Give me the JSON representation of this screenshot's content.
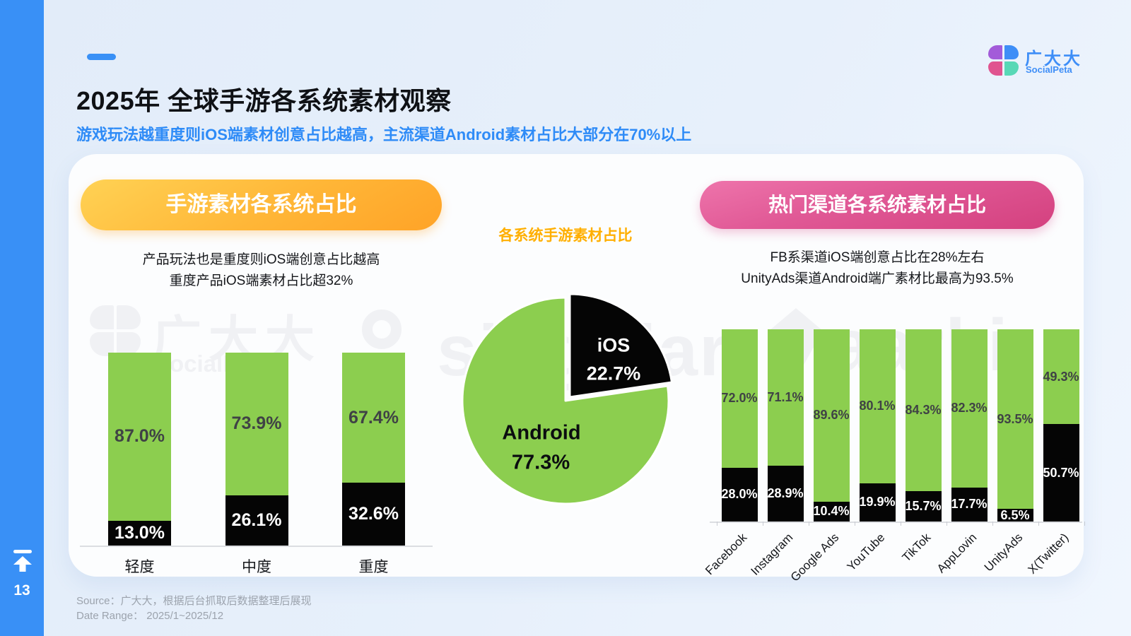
{
  "page": {
    "number": "13"
  },
  "header": {
    "title": "2025年 全球手游各系统素材观察",
    "subtitle": "游戏玩法越重度则iOS端素材创意占比越高，主流渠道Android素材占比大部分在70%以上"
  },
  "logo": {
    "name": "广大大",
    "sub": "SocialPeta"
  },
  "left_panel": {
    "pill": "手游素材各系统占比",
    "desc1": "产品玩法也是重度则iOS端创意占比越高",
    "desc2": "重度产品iOS端素材占比超32%"
  },
  "center_panel": {
    "title": "各系统手游素材占比"
  },
  "right_panel": {
    "pill": "热门渠道各系统素材占比",
    "desc1": "FB系渠道iOS端创意占比在28%左右",
    "desc2": "UnityAds渠道Android端广素材比最高为93.5%"
  },
  "watermarks": {
    "socialpeta_name": "广大大",
    "socialpeta_sub": "SocialPeta",
    "singular": "singular",
    "aarki": "aarki"
  },
  "footer": {
    "source": "Source：广大大，根据后台抓取后数据整理后展现",
    "date_range": "Date Range： 2025/1~2025/12"
  },
  "colors": {
    "android_green": "#8CCE4F",
    "ios_black": "#050505",
    "accent_blue": "#3990F6",
    "pie_title_orange": "#FFAF00"
  },
  "chart_data": [
    {
      "type": "bar",
      "stacked": true,
      "unit": "%",
      "title": "手游素材各系统占比",
      "categories": [
        "轻度",
        "中度",
        "重度"
      ],
      "series": [
        {
          "name": "Android",
          "color": "#8CCE4F",
          "values": [
            87.0,
            73.9,
            67.4
          ]
        },
        {
          "name": "iOS",
          "color": "#050505",
          "values": [
            13.0,
            26.1,
            32.6
          ]
        }
      ],
      "ylim": [
        0,
        100
      ],
      "grid": false,
      "legend": "none"
    },
    {
      "type": "pie",
      "title": "各系统手游素材占比",
      "labels": [
        "Android",
        "iOS"
      ],
      "values": [
        77.3,
        22.7
      ],
      "colors": [
        "#8CCE4F",
        "#050505"
      ]
    },
    {
      "type": "bar",
      "stacked": true,
      "unit": "%",
      "title": "热门渠道各系统素材占比",
      "categories": [
        "Facebook",
        "Instagram",
        "Google Ads",
        "YouTube",
        "TikTok",
        "AppLovin",
        "UnityAds",
        "X(Twitter)"
      ],
      "series": [
        {
          "name": "Android",
          "color": "#8CCE4F",
          "values": [
            72.0,
            71.1,
            89.6,
            80.1,
            84.3,
            82.3,
            93.5,
            49.3
          ]
        },
        {
          "name": "iOS",
          "color": "#050505",
          "values": [
            28.0,
            28.9,
            10.4,
            19.9,
            15.7,
            17.7,
            6.5,
            50.7
          ]
        }
      ],
      "ylim": [
        0,
        100
      ],
      "grid": false,
      "legend": "none"
    }
  ]
}
